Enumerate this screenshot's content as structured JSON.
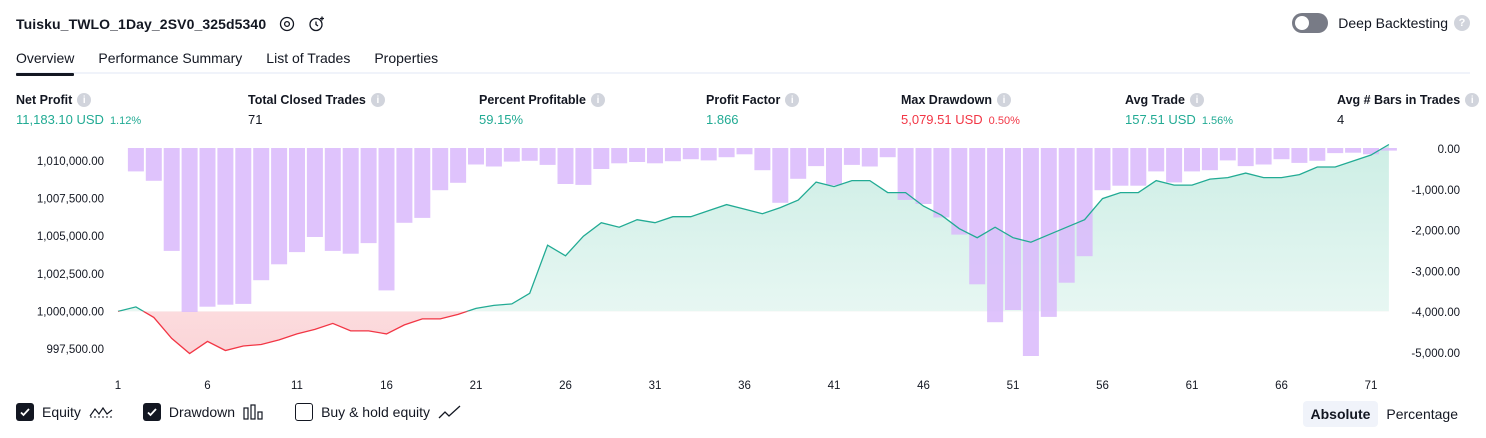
{
  "header": {
    "title": "Tuisku_TWLO_1Day_2SV0_325d5340",
    "deep_backtesting_label": "Deep Backtesting",
    "deep_backtesting_on": false
  },
  "tabs": [
    {
      "label": "Overview",
      "active": true
    },
    {
      "label": "Performance Summary",
      "active": false
    },
    {
      "label": "List of Trades",
      "active": false
    },
    {
      "label": "Properties",
      "active": false
    }
  ],
  "metrics": {
    "net_profit": {
      "label": "Net Profit",
      "value": "11,183.10 USD",
      "sub": "1.12%",
      "color": "#22ab94"
    },
    "total_closed_trades": {
      "label": "Total Closed Trades",
      "value": "71"
    },
    "percent_profitable": {
      "label": "Percent Profitable",
      "value": "59.15%",
      "color": "#22ab94"
    },
    "profit_factor": {
      "label": "Profit Factor",
      "value": "1.866",
      "color": "#22ab94"
    },
    "max_drawdown": {
      "label": "Max Drawdown",
      "value": "5,079.51 USD",
      "sub": "0.50%",
      "color": "#f23645"
    },
    "avg_trade": {
      "label": "Avg Trade",
      "value": "157.51 USD",
      "sub": "1.56%",
      "color": "#22ab94"
    },
    "avg_bars": {
      "label": "Avg # Bars in Trades",
      "value": "4"
    }
  },
  "legend": {
    "equity": {
      "label": "Equity",
      "checked": true
    },
    "drawdown": {
      "label": "Drawdown",
      "checked": true
    },
    "buy_hold": {
      "label": "Buy & hold equity",
      "checked": false
    }
  },
  "mode": {
    "absolute": "Absolute",
    "percentage": "Percentage",
    "selected": "Absolute"
  },
  "colors": {
    "equity_line_pos": "#22ab94",
    "equity_line_neg": "#f23645",
    "equity_fill_pos": "#cdeee5",
    "equity_fill_neg": "#fbd5d8",
    "drawdown_bar": "#d9b8fb"
  },
  "chart_data": {
    "type": "line",
    "x_ticks": [
      1,
      6,
      11,
      16,
      21,
      26,
      31,
      36,
      41,
      46,
      51,
      56,
      61,
      66,
      71
    ],
    "left_axis": {
      "ticks": [
        "1,010,000.00",
        "1,007,500.00",
        "1,005,000.00",
        "1,002,500.00",
        "1,000,000.00",
        "997,500.00"
      ],
      "tick_values": [
        1010000,
        1007500,
        1005000,
        1002500,
        1000000,
        997500
      ],
      "ylim": [
        996500,
        1011000
      ]
    },
    "right_axis": {
      "ticks": [
        "0.00",
        "-1,000.00",
        "-2,000.00",
        "-3,000.00",
        "-4,000.00",
        "-5,000.00"
      ],
      "tick_values": [
        0,
        -1000,
        -2000,
        -3000,
        -4000,
        -5000
      ],
      "ylim": [
        -5300,
        0
      ]
    },
    "baseline": 1000000,
    "series": [
      {
        "name": "Equity",
        "x": [
          1,
          2,
          3,
          4,
          5,
          6,
          7,
          8,
          9,
          10,
          11,
          12,
          13,
          14,
          15,
          16,
          17,
          18,
          19,
          20,
          21,
          22,
          23,
          24,
          25,
          26,
          27,
          28,
          29,
          30,
          31,
          32,
          33,
          34,
          35,
          36,
          37,
          38,
          39,
          40,
          41,
          42,
          43,
          44,
          45,
          46,
          47,
          48,
          49,
          50,
          51,
          52,
          53,
          54,
          55,
          56,
          57,
          58,
          59,
          60,
          61,
          62,
          63,
          64,
          65,
          66,
          67,
          68,
          69,
          70,
          71,
          72
        ],
        "values": [
          1000000,
          1000300,
          999600,
          998200,
          997200,
          998000,
          997400,
          997700,
          997800,
          998100,
          998500,
          998800,
          999200,
          998700,
          998700,
          998500,
          999100,
          999500,
          999500,
          999800,
          1000200,
          1000400,
          1000500,
          1001200,
          1004400,
          1003700,
          1005000,
          1005900,
          1005600,
          1006100,
          1005900,
          1006300,
          1006300,
          1006700,
          1007100,
          1006800,
          1006500,
          1006900,
          1007400,
          1008600,
          1008300,
          1008700,
          1008700,
          1007900,
          1007900,
          1007000,
          1006400,
          1005500,
          1004900,
          1005600,
          1004900,
          1004600,
          1005100,
          1005600,
          1006100,
          1007500,
          1007900,
          1007900,
          1008700,
          1008400,
          1008400,
          1008800,
          1008900,
          1009200,
          1008900,
          1008900,
          1009100,
          1009600,
          1009600,
          1010000,
          1010400,
          1011100
        ]
      },
      {
        "name": "Drawdown",
        "x": [
          2,
          3,
          4,
          5,
          6,
          7,
          8,
          9,
          10,
          11,
          12,
          13,
          14,
          15,
          16,
          17,
          18,
          19,
          20,
          21,
          22,
          23,
          24,
          25,
          26,
          27,
          28,
          29,
          30,
          31,
          32,
          33,
          34,
          35,
          36,
          37,
          38,
          39,
          40,
          41,
          42,
          43,
          44,
          45,
          46,
          47,
          48,
          49,
          50,
          51,
          52,
          53,
          54,
          55,
          56,
          57,
          58,
          59,
          60,
          61,
          62,
          63,
          64,
          65,
          66,
          67,
          68,
          69,
          70,
          71,
          72
        ],
        "values": [
          -550,
          -780,
          -2500,
          -4000,
          -3870,
          -3820,
          -3800,
          -3220,
          -2830,
          -2530,
          -2160,
          -2500,
          -2570,
          -2310,
          -3470,
          -1810,
          -1690,
          -1010,
          -830,
          -380,
          -430,
          -310,
          -290,
          -390,
          -860,
          -880,
          -490,
          -350,
          -320,
          -350,
          -300,
          -250,
          -280,
          -200,
          -130,
          -520,
          -1320,
          -730,
          -420,
          -890,
          -390,
          -430,
          -200,
          -1250,
          -1350,
          -1680,
          -2100,
          -3320,
          -4250,
          -3950,
          -5079,
          -4120,
          -3280,
          -2630,
          -1010,
          -900,
          -900,
          -550,
          -820,
          -550,
          -520,
          -280,
          -420,
          -380,
          -250,
          -340,
          -290,
          -100,
          -90,
          -130,
          -40
        ]
      }
    ]
  }
}
